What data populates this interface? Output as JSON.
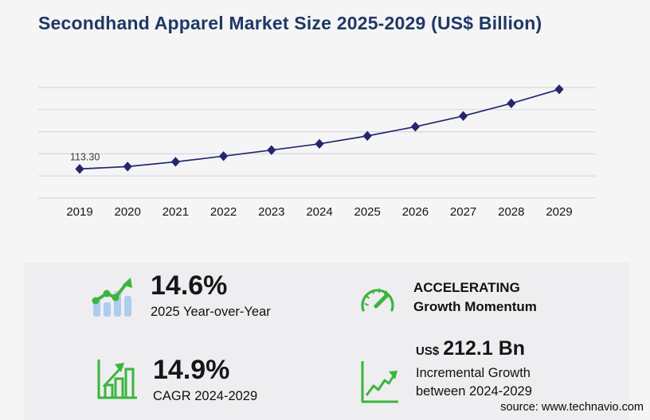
{
  "page": {
    "title": "Secondhand Apparel Market Size 2025-2029 (US$ Billion)",
    "source": "source: www.technavio.com"
  },
  "colors": {
    "page_bg": "#f5f5f6",
    "panel_bg": "#eeeef0",
    "title_navy": "#1f3864",
    "line_navy": "#23276f",
    "grid": "#d9d9dd",
    "green": "#3cb43c",
    "light_blue": "#aecbf0",
    "text_dark": "#161618"
  },
  "chart_data": {
    "type": "line",
    "title": "Secondhand Apparel Market Size 2025-2029 (US$ Billion)",
    "x": [
      "2019",
      "2020",
      "2021",
      "2022",
      "2023",
      "2024",
      "2025",
      "2026",
      "2027",
      "2028",
      "2029"
    ],
    "series": [
      {
        "name": "Market size (US$ Billion)",
        "values": [
          113.3,
          122.5,
          141.0,
          163.0,
          186.5,
          210.9,
          241.7,
          277.5,
          319.3,
          368.2,
          423.0
        ]
      }
    ],
    "data_label": {
      "x": "2019",
      "text": "113.30"
    },
    "xlabel": "",
    "ylabel": "",
    "ylim": [
      0,
      430
    ],
    "gridline_count": 6,
    "grid": "horizontal",
    "legend": "none",
    "marker": "diamond",
    "line_color": "#23276f"
  },
  "stats": {
    "yoy": {
      "value": "14.6%",
      "label": "2025 Year-over-Year"
    },
    "momentum": {
      "line1": "ACCELERATING",
      "line2": "Growth Momentum"
    },
    "cagr": {
      "value": "14.9%",
      "label": "CAGR 2024-2029"
    },
    "incremental": {
      "currency": "US$",
      "value": "212.1 Bn",
      "label_line1": "Incremental Growth",
      "label_line2": "between 2024-2029"
    }
  }
}
